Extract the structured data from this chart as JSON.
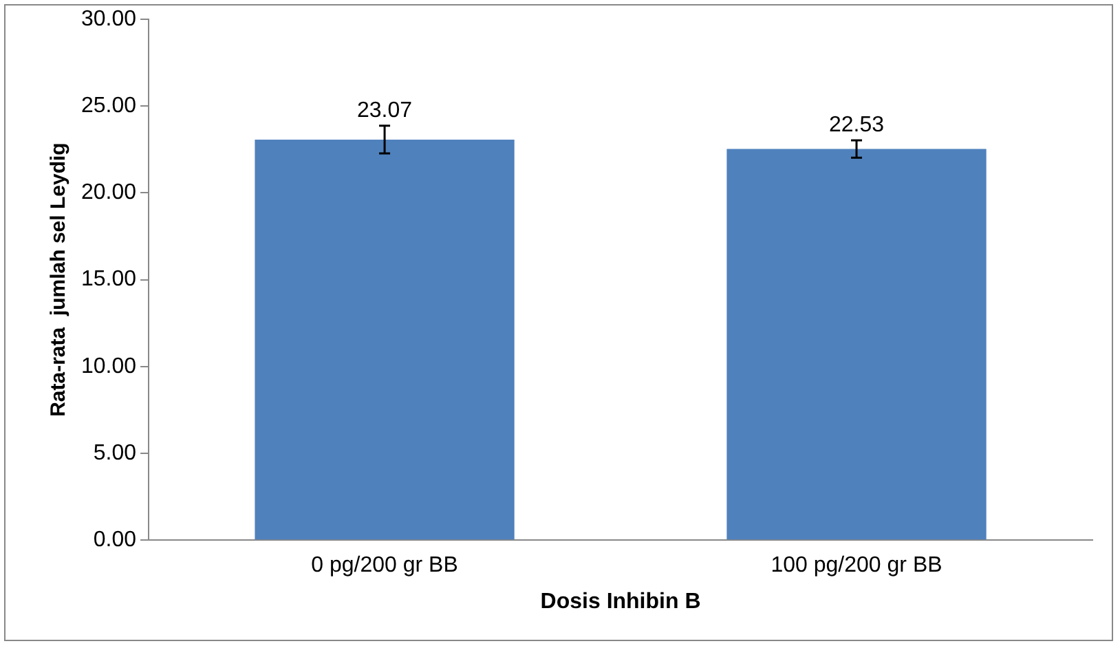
{
  "chart_data": {
    "type": "bar",
    "xlabel": "Dosis Inhibin B",
    "ylabel": "Rata-rata  jumlah sel Leydig",
    "categories": [
      "0 pg/200 gr BB",
      "100 pg/200 gr BB"
    ],
    "values": [
      23.07,
      22.53
    ],
    "errors": [
      0.8,
      0.5
    ],
    "color": "#4f81bd",
    "ylim": [
      0,
      30
    ],
    "yticks": [
      {
        "value": 0,
        "label": "0.00"
      },
      {
        "value": 5,
        "label": "5.00"
      },
      {
        "value": 10,
        "label": "10.00"
      },
      {
        "value": 15,
        "label": "15.00"
      },
      {
        "value": 20,
        "label": "20.00"
      },
      {
        "value": 25,
        "label": "25.00"
      },
      {
        "value": 30,
        "label": "30.00"
      }
    ],
    "data_labels": true,
    "grid": false,
    "legend": false
  }
}
